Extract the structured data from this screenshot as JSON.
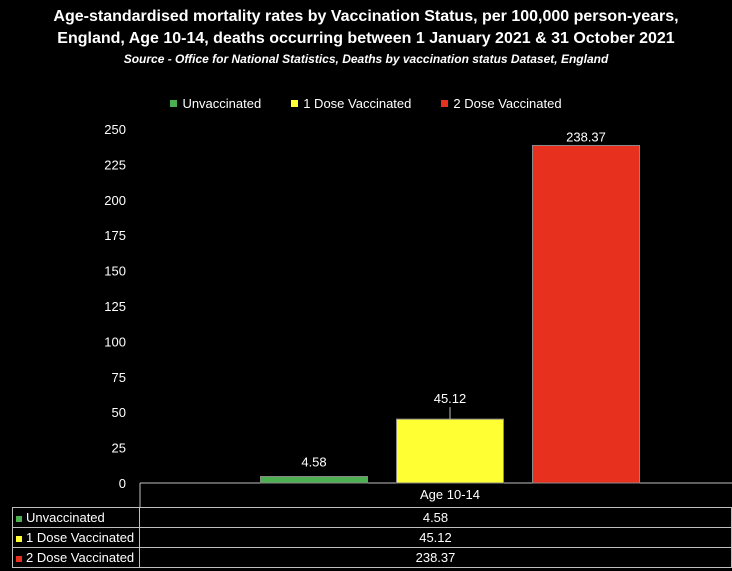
{
  "chart_data": {
    "type": "bar",
    "title_lines": [
      "Age-standardised mortality rates by Vaccination Status, per 100,000 person-years,",
      "England, Age 10-14, deaths occurring between 1 January 2021 & 31 October 2021"
    ],
    "subtitle": "Source - Office for National Statistics, Deaths by vaccination status Dataset, England",
    "categories": [
      "Age 10-14"
    ],
    "series": [
      {
        "name": "Unvaccinated",
        "values": [
          4.58
        ],
        "label": "4.58",
        "color": "#4caf50"
      },
      {
        "name": "1 Dose Vaccinated",
        "values": [
          45.12
        ],
        "label": "45.12",
        "color": "#ffff33"
      },
      {
        "name": "2 Dose Vaccinated",
        "values": [
          238.37
        ],
        "label": "238.37",
        "color": "#e8301f"
      }
    ],
    "ylim": [
      0,
      250
    ],
    "yticks": [
      "0",
      "25",
      "50",
      "75",
      "100",
      "125",
      "150",
      "175",
      "200",
      "225",
      "250"
    ],
    "legend_position": "top",
    "grid": false,
    "data_table": true
  }
}
